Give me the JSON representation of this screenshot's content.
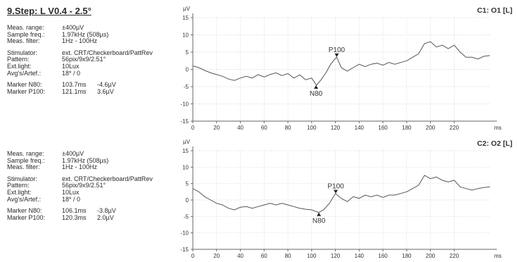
{
  "step_title": "9.Step: L V0.4 - 2.5°",
  "panels": [
    {
      "rows1": [
        {
          "label": "Meas. range:",
          "value": "±400µV"
        },
        {
          "label": "Sample freq.:",
          "value": "1.97kHz (508µs)"
        },
        {
          "label": "Meas. filter:",
          "value": "1Hz - 100Hz"
        }
      ],
      "rows2": [
        {
          "label": "Stimulator:",
          "value": "ext. CRT/Checkerboard/PattRev"
        },
        {
          "label": "Pattern:",
          "value": "56pix/9x9/2.51°"
        },
        {
          "label": "Ext.light:",
          "value": "10Lux"
        },
        {
          "label": "Avg's/Artef.:",
          "value": "18* / 0"
        }
      ],
      "markers": [
        {
          "label": "Marker N80:",
          "time": "103.7ms",
          "amp": "-4.6µV"
        },
        {
          "label": "Marker P100:",
          "time": "121.1ms",
          "amp": "3.6µV"
        }
      ]
    },
    {
      "rows1": [
        {
          "label": "Meas. range:",
          "value": "±400µV"
        },
        {
          "label": "Sample freq.:",
          "value": "1.97kHz (508µs)"
        },
        {
          "label": "Meas. filter:",
          "value": "1Hz - 100Hz"
        }
      ],
      "rows2": [
        {
          "label": "Stimulator:",
          "value": "ext. CRT/Checkerboard/PattRev"
        },
        {
          "label": "Pattern:",
          "value": "56pix/9x9/2.51°"
        },
        {
          "label": "Ext.light:",
          "value": "10Lux"
        },
        {
          "label": "Avg's/Artef.:",
          "value": "18* / 0"
        }
      ],
      "markers": [
        {
          "label": "Marker N80:",
          "time": "106.1ms",
          "amp": "-3.8µV"
        },
        {
          "label": "Marker P100:",
          "time": "120.3ms",
          "amp": "2.0µV"
        }
      ]
    }
  ],
  "chart_data": [
    {
      "type": "line",
      "title": "C1: O1 [L]",
      "xlabel": "ms",
      "ylabel": "µV",
      "xlim": [
        0,
        250
      ],
      "ylim": [
        -15,
        15
      ],
      "xticks": [
        0,
        20,
        40,
        60,
        80,
        100,
        120,
        140,
        160,
        180,
        200,
        220
      ],
      "yticks": [
        15,
        10,
        5,
        0,
        -5,
        -10,
        -15
      ],
      "grid": true,
      "color": "#555555",
      "x": [
        0,
        5,
        10,
        15,
        20,
        25,
        30,
        35,
        40,
        45,
        50,
        55,
        60,
        65,
        70,
        75,
        80,
        85,
        90,
        95,
        100,
        104,
        108,
        112,
        116,
        121,
        125,
        130,
        135,
        140,
        145,
        150,
        155,
        160,
        165,
        170,
        175,
        180,
        185,
        190,
        195,
        200,
        205,
        210,
        215,
        220,
        225,
        230,
        235,
        240,
        245,
        250
      ],
      "y": [
        1.0,
        0.5,
        -0.3,
        -1.0,
        -1.5,
        -2.0,
        -2.8,
        -3.2,
        -2.5,
        -2.0,
        -2.5,
        -1.5,
        -2.2,
        -1.5,
        -1.0,
        -1.8,
        -1.2,
        -2.5,
        -1.6,
        -3.0,
        -2.5,
        -4.6,
        -3.0,
        -1.0,
        1.5,
        3.6,
        0.5,
        -0.5,
        0.5,
        1.5,
        0.8,
        1.5,
        1.8,
        1.2,
        2.0,
        1.5,
        2.0,
        2.5,
        3.5,
        4.5,
        7.5,
        8.0,
        6.5,
        7.0,
        6.0,
        7.0,
        5.0,
        3.5,
        3.5,
        3.0,
        3.8,
        4.0
      ],
      "markers": [
        {
          "label": "N80",
          "x": 103.7,
          "y": -4.6
        },
        {
          "label": "P100",
          "x": 121.1,
          "y": 3.6
        }
      ]
    },
    {
      "type": "line",
      "title": "C2: O2 [L]",
      "xlabel": "ms",
      "ylabel": "µV",
      "xlim": [
        0,
        250
      ],
      "ylim": [
        -15,
        15
      ],
      "xticks": [
        0,
        20,
        40,
        60,
        80,
        100,
        120,
        140,
        160,
        180,
        200,
        220
      ],
      "yticks": [
        15,
        10,
        5,
        0,
        -5,
        -10,
        -15
      ],
      "grid": true,
      "color": "#555555",
      "x": [
        0,
        5,
        10,
        15,
        20,
        25,
        30,
        35,
        40,
        45,
        50,
        55,
        60,
        65,
        70,
        75,
        80,
        85,
        90,
        95,
        100,
        106,
        110,
        115,
        120,
        125,
        130,
        135,
        140,
        145,
        150,
        155,
        160,
        165,
        170,
        175,
        180,
        185,
        190,
        195,
        200,
        205,
        210,
        215,
        220,
        225,
        230,
        235,
        240,
        245,
        250
      ],
      "y": [
        3.5,
        2.5,
        1.0,
        0.0,
        -1.0,
        -1.5,
        -2.5,
        -3.0,
        -2.2,
        -2.0,
        -2.5,
        -2.0,
        -1.5,
        -1.0,
        -1.5,
        -1.0,
        -1.5,
        -2.0,
        -2.5,
        -2.8,
        -3.0,
        -3.8,
        -3.0,
        -1.0,
        2.0,
        0.5,
        -0.5,
        1.0,
        0.5,
        1.5,
        1.0,
        1.5,
        0.8,
        1.5,
        1.5,
        2.0,
        2.5,
        3.5,
        4.5,
        7.5,
        6.5,
        7.0,
        6.0,
        5.5,
        6.0,
        4.0,
        3.5,
        3.0,
        3.5,
        3.8,
        4.0
      ],
      "markers": [
        {
          "label": "N80",
          "x": 106.1,
          "y": -3.8
        },
        {
          "label": "P100",
          "x": 120.3,
          "y": 2.0
        }
      ]
    }
  ]
}
